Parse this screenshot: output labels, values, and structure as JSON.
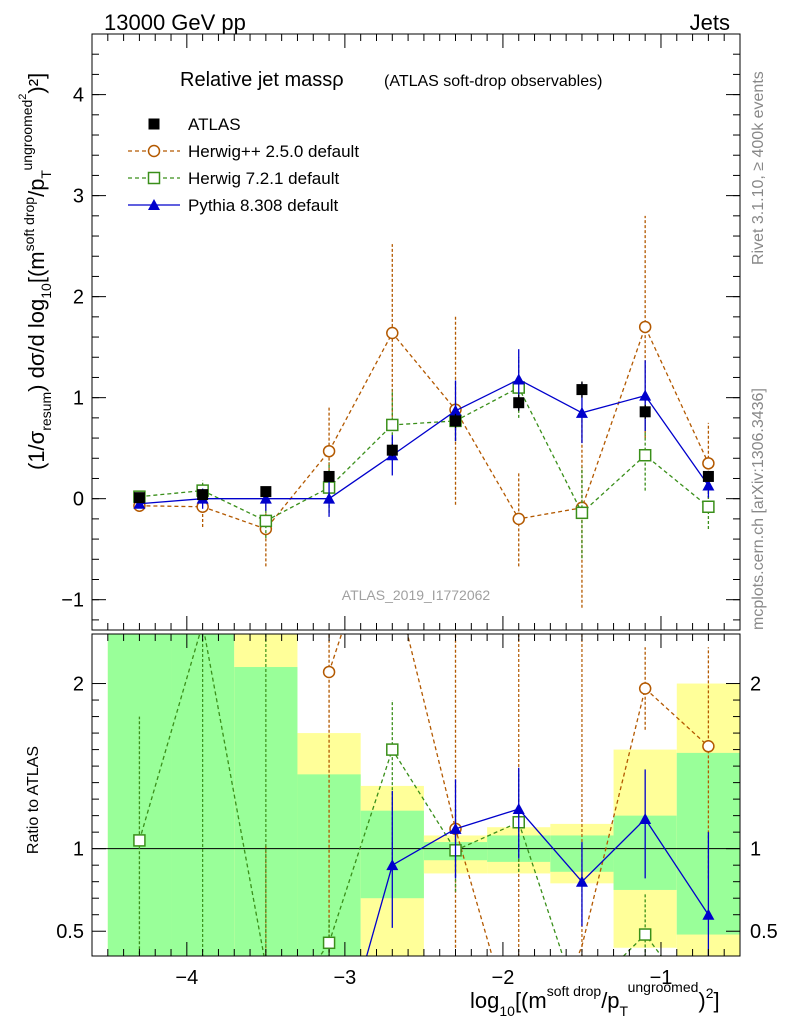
{
  "header": {
    "left": "13000 GeV pp",
    "right": "Jets",
    "side_rivet": "Rivet 3.1.10, ≥ 400k events",
    "side_mcplots": "mcplots.cern.ch [arXiv:1306.3436]",
    "watermark": "ATLAS_2019_I1772062"
  },
  "chart_data": [
    {
      "type": "line",
      "title": "Relative jet massρ",
      "subtitle": "(ATLAS soft-drop observables)",
      "ylabel_main": "(1/σ",
      "ylabel_sub1": "resum",
      "ylabel_mid": ") dσ/d log",
      "ylabel_sub2": "10",
      "ylabel_post": "[(m",
      "ylabel_sup1": "soft drop",
      "ylabel_mid2": "/p",
      "ylabel_sub3": "T",
      "ylabel_sup2": "ungroomed",
      "ylabel_sup3": "2",
      "ylabel_end": ")²]",
      "xlim": [
        -4.6,
        -0.5
      ],
      "ylim": [
        -1.3,
        4.6
      ],
      "yticks": [
        -1,
        0,
        1,
        2,
        3,
        4
      ],
      "ytick_labels": [
        "−1",
        "0",
        "1",
        "2",
        "3",
        "4"
      ],
      "x": [
        -4.3,
        -3.9,
        -3.5,
        -3.1,
        -2.7,
        -2.3,
        -1.9,
        -1.5,
        -1.1,
        -0.7
      ],
      "series": [
        {
          "name": "ATLAS",
          "color": "#000000",
          "values": [
            0.01,
            0.04,
            0.07,
            0.22,
            0.48,
            0.77,
            0.95,
            1.08,
            0.86,
            0.22
          ],
          "errors": [
            0.03,
            0.03,
            0.03,
            0.05,
            0.06,
            0.07,
            0.08,
            0.08,
            0.07,
            0.05
          ]
        },
        {
          "name": "Herwig++ 2.5.0 default",
          "color": "#b35900",
          "values": [
            -0.07,
            -0.08,
            -0.3,
            0.47,
            1.64,
            0.88,
            -0.2,
            -0.09,
            1.7,
            0.35
          ],
          "errors": [
            0.05,
            0.2,
            0.37,
            0.44,
            0.88,
            0.94,
            0.47,
            0.99,
            1.1,
            0.4
          ]
        },
        {
          "name": "Herwig 7.2.1 default",
          "color": "#3a8f1a",
          "values": [
            0.02,
            0.08,
            -0.22,
            0.11,
            0.73,
            0.77,
            1.1,
            -0.14,
            0.43,
            -0.08
          ],
          "errors": [
            0.04,
            0.1,
            0.17,
            0.25,
            0.35,
            0.2,
            0.3,
            0.45,
            0.35,
            0.22
          ]
        },
        {
          "name": "Pythia 8.308 default",
          "color": "#0000cc",
          "values": [
            -0.05,
            0.0,
            0.0,
            0.0,
            0.43,
            0.87,
            1.18,
            0.85,
            1.02,
            0.13
          ],
          "errors": [
            0.03,
            0.1,
            0.12,
            0.18,
            0.2,
            0.3,
            0.3,
            0.3,
            0.35,
            0.12
          ]
        }
      ],
      "legend": "top-left"
    },
    {
      "type": "line",
      "ylabel": "Ratio to ATLAS",
      "xlabel_pre": "log",
      "xlabel_sub": "10",
      "xlabel_post": "[(m",
      "xlabel_sup1": "soft drop",
      "xlabel_mid": "/p",
      "xlabel_sub2": "T",
      "xlabel_sup2": "ungroomed",
      "xlabel_end": ")",
      "xlabel_sup3": "2",
      "xlabel_close": "]",
      "xlim": [
        -4.6,
        -0.5
      ],
      "ylim": [
        0.35,
        2.3
      ],
      "yticks": [
        0.5,
        1,
        2
      ],
      "ytick_labels": [
        "0.5",
        "1",
        "2"
      ],
      "xticks": [
        -4,
        -3,
        -2,
        -1
      ],
      "xtick_labels": [
        "−4",
        "−3",
        "−2",
        "−1"
      ],
      "bins": [
        -4.5,
        -4.1,
        -3.7,
        -3.3,
        -2.9,
        -2.5,
        -2.1,
        -1.7,
        -1.3,
        -0.9,
        -0.5
      ],
      "band_yellow_lo": [
        0.35,
        0.35,
        0.35,
        0.35,
        0.35,
        0.85,
        0.85,
        0.79,
        0.4,
        0.35
      ],
      "band_yellow_hi": [
        2.3,
        2.3,
        2.3,
        1.7,
        1.38,
        1.08,
        1.13,
        1.15,
        1.6,
        2.0
      ],
      "band_green_lo": [
        0.35,
        0.35,
        0.35,
        0.35,
        0.7,
        0.93,
        0.92,
        0.86,
        0.75,
        0.48
      ],
      "band_green_hi": [
        2.3,
        2.3,
        2.1,
        1.45,
        1.23,
        1.04,
        1.08,
        1.08,
        1.2,
        1.58
      ],
      "x": [
        -4.3,
        -3.9,
        -3.5,
        -3.1,
        -2.7,
        -2.3,
        -1.9,
        -1.5,
        -1.1,
        -0.7
      ],
      "series": [
        {
          "name": "Herwig++ 2.5.0 default",
          "color": "#b35900",
          "values": [
            null,
            null,
            null,
            2.07,
            2.6,
            1.12,
            -0.2,
            null,
            1.97,
            1.62
          ],
          "err_lo": [
            0,
            0,
            0,
            1.7,
            0,
            0.72,
            0,
            0,
            0.25,
            0.8
          ],
          "err_hi": [
            0,
            0,
            0,
            0.6,
            0,
            1.2,
            0,
            0,
            0.25,
            0.6
          ]
        },
        {
          "name": "Herwig 7.2.1 default",
          "color": "#3a8f1a",
          "values": [
            1.05,
            2.5,
            -0.5,
            0.43,
            1.6,
            0.99,
            1.16,
            -0.2,
            0.48,
            null
          ],
          "err_lo": [
            0.75,
            0,
            0,
            0.15,
            0.7,
            0.25,
            0.3,
            0,
            0.35,
            0
          ],
          "err_hi": [
            0.75,
            0,
            0,
            0.15,
            0.3,
            0.25,
            0.3,
            0,
            0.25,
            0
          ]
        },
        {
          "name": "Pythia 8.308 default",
          "color": "#0000cc",
          "values": [
            null,
            null,
            null,
            null,
            0.9,
            1.12,
            1.24,
            0.8,
            1.18,
            0.6
          ],
          "err_lo": [
            0,
            0,
            0,
            0,
            0.38,
            0.3,
            0.3,
            0.27,
            0.36,
            0.45
          ],
          "err_hi": [
            0,
            0,
            0,
            0,
            0.45,
            0.3,
            0.25,
            0.24,
            0.3,
            0.5
          ]
        }
      ]
    }
  ]
}
